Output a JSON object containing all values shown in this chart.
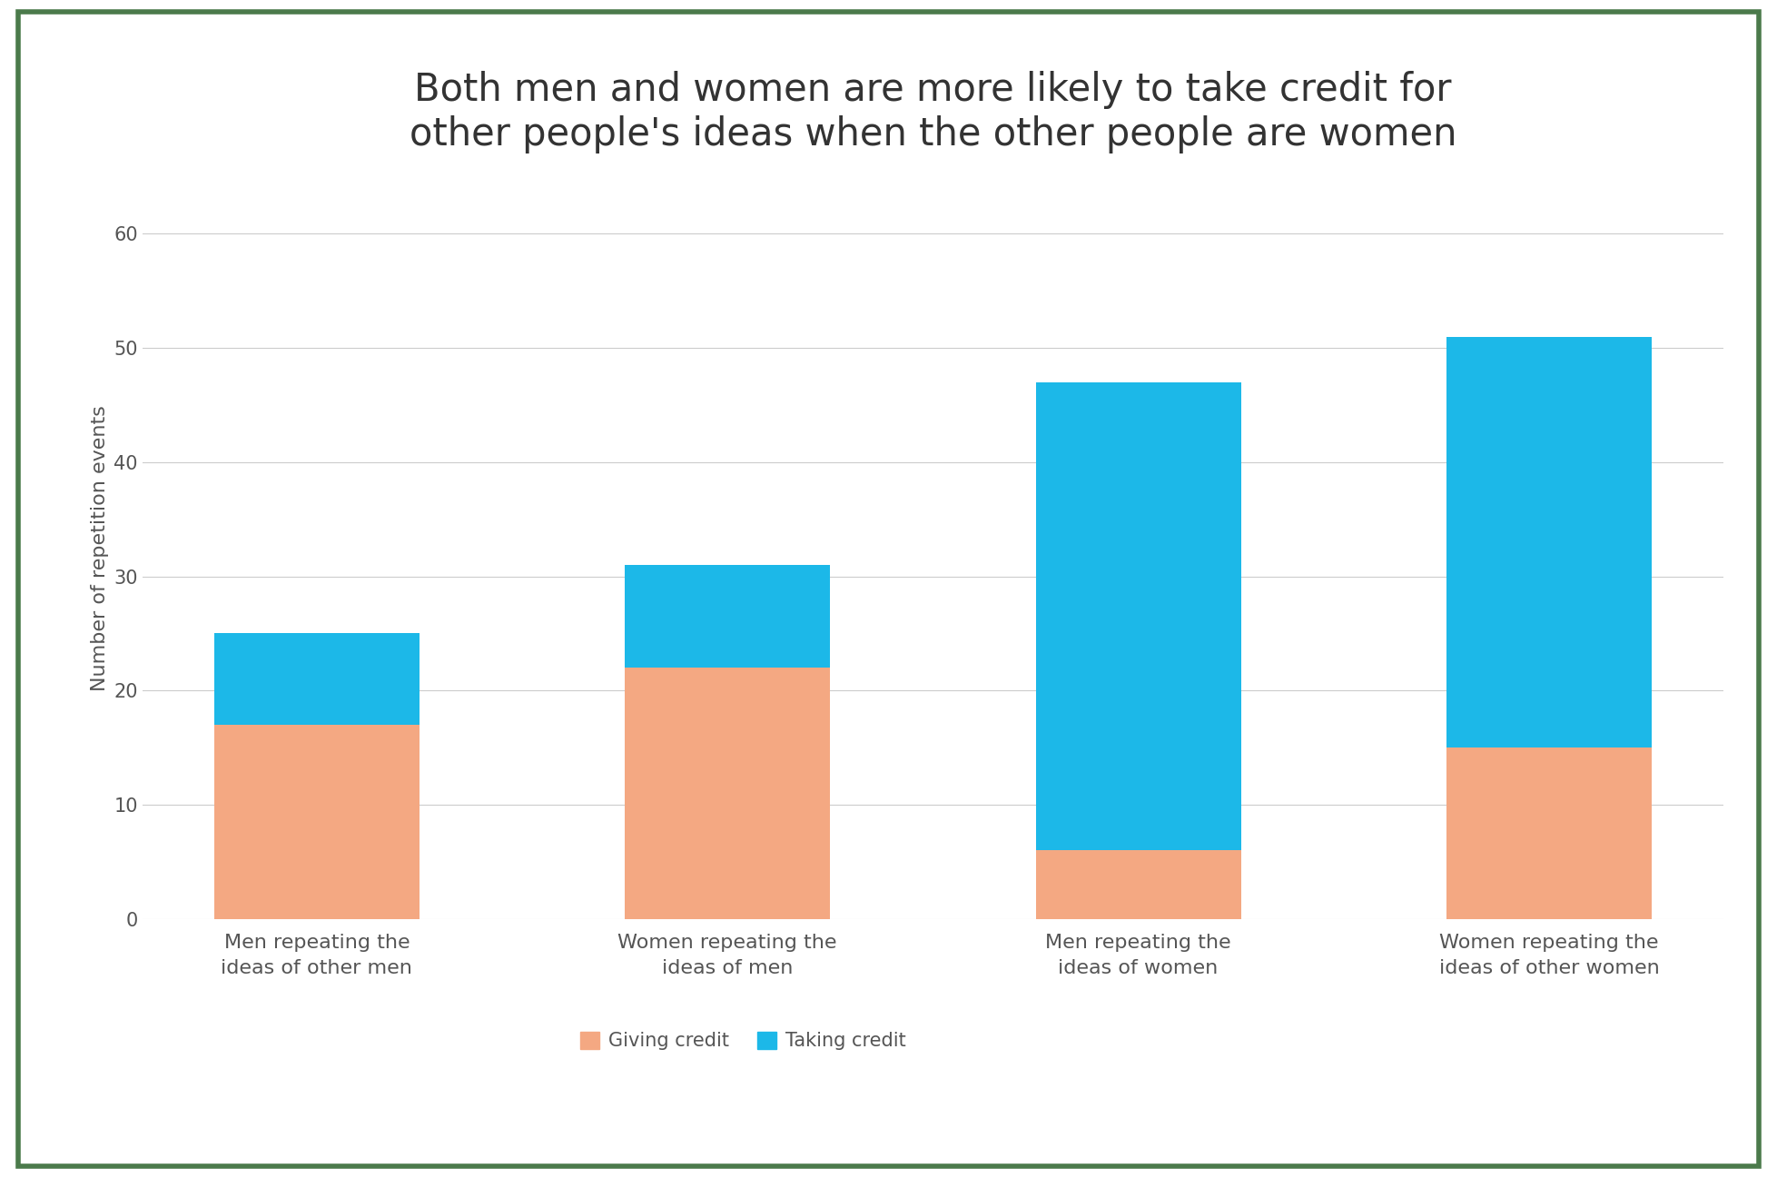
{
  "title": "Both men and women are more likely to take credit for\nother people's ideas when the other people are women",
  "categories": [
    "Men repeating the\nideas of other men",
    "Women repeating the\nideas of men",
    "Men repeating the\nideas of women",
    "Women repeating the\nideas of other women"
  ],
  "giving_credit": [
    17,
    22,
    6,
    15
  ],
  "taking_credit": [
    8,
    9,
    41,
    36
  ],
  "giving_credit_color": "#F4A882",
  "taking_credit_color": "#1CB8E8",
  "ylabel": "Number of repetition events",
  "ylim": [
    0,
    65
  ],
  "yticks": [
    0,
    10,
    20,
    30,
    40,
    50,
    60
  ],
  "legend_giving": "Giving credit",
  "legend_taking": "Taking credit",
  "bar_width": 0.5,
  "background_color": "#FFFFFF",
  "border_color": "#4B7A4B",
  "title_fontsize": 30,
  "tick_fontsize": 15,
  "ylabel_fontsize": 16,
  "legend_fontsize": 15,
  "xtick_fontsize": 16
}
